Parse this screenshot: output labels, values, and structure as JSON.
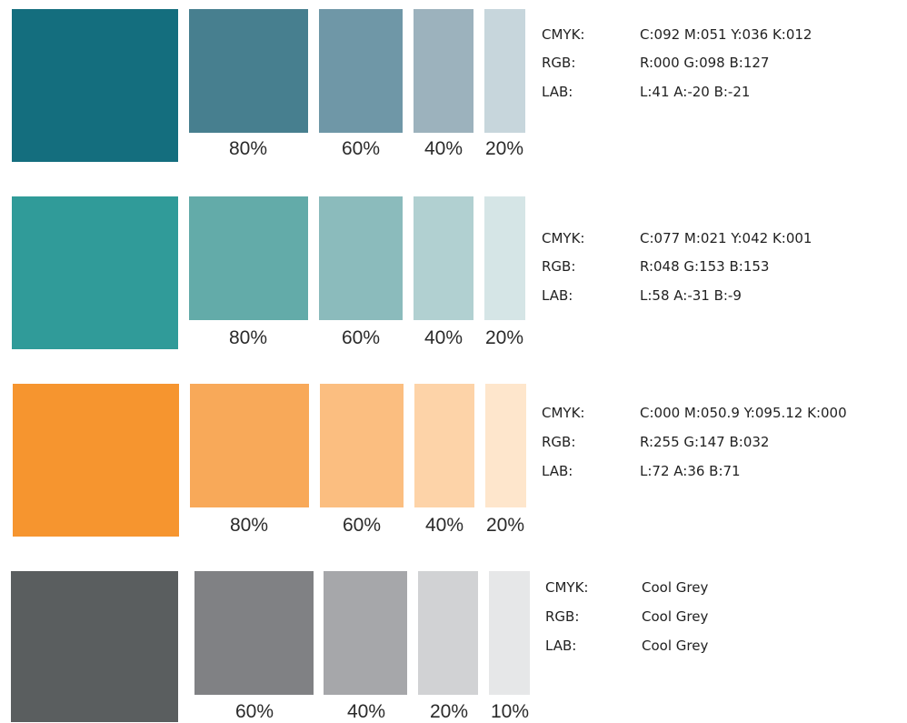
{
  "palettes": [
    {
      "name": "",
      "base_color": "#146e7e",
      "tints": [
        {
          "label": "80%",
          "color": "#477f8f"
        },
        {
          "label": "60%",
          "color": "#6f97a7"
        },
        {
          "label": "40%",
          "color": "#9cb2bd"
        },
        {
          "label": "20%",
          "color": "#c7d6dc"
        }
      ],
      "specs": [
        {
          "label": "CMYK:",
          "value": "C:092   M:051   Y:036   K:012"
        },
        {
          "label": "RGB:",
          "value": "R:000  G:098  B:127"
        },
        {
          "label": "LAB:",
          "value": "L:41  A:-20  B:-21"
        }
      ]
    },
    {
      "name": "",
      "base_color": "#309b99",
      "tints": [
        {
          "label": "80%",
          "color": "#63aba9"
        },
        {
          "label": "60%",
          "color": "#8bbbbc"
        },
        {
          "label": "40%",
          "color": "#b1d0d1"
        },
        {
          "label": "20%",
          "color": "#d5e5e6"
        }
      ],
      "specs": [
        {
          "label": "CMYK:",
          "value": "C:077   M:021   Y:042   K:001"
        },
        {
          "label": "RGB:",
          "value": "R:048  G:153  B:153"
        },
        {
          "label": "LAB:",
          "value": "L:58  A:-31  B:-9"
        }
      ]
    },
    {
      "name": "",
      "base_color": "#f6952f",
      "tints": [
        {
          "label": "80%",
          "color": "#f8a959"
        },
        {
          "label": "60%",
          "color": "#fbbe80"
        },
        {
          "label": "40%",
          "color": "#fdd3a8"
        },
        {
          "label": "20%",
          "color": "#fee6cc"
        }
      ],
      "specs": [
        {
          "label": "CMYK:",
          "value": "C:000   M:050.9   Y:095.12   K:000"
        },
        {
          "label": "RGB:",
          "value": "R:255  G:147  B:032"
        },
        {
          "label": "LAB:",
          "value": "L:72  A:36  B:71"
        }
      ]
    },
    {
      "name": "",
      "base_color": "#5a5e5f",
      "tints": [
        {
          "label": "60%",
          "color": "#808184"
        },
        {
          "label": "40%",
          "color": "#a6a7aa"
        },
        {
          "label": "20%",
          "color": "#d1d2d4"
        },
        {
          "label": "10%",
          "color": "#e6e7e8"
        }
      ],
      "specs": [
        {
          "label": "CMYK:",
          "value": "Cool Grey"
        },
        {
          "label": "RGB:",
          "value": "Cool Grey"
        },
        {
          "label": "LAB:",
          "value": "Cool Grey"
        }
      ]
    }
  ]
}
